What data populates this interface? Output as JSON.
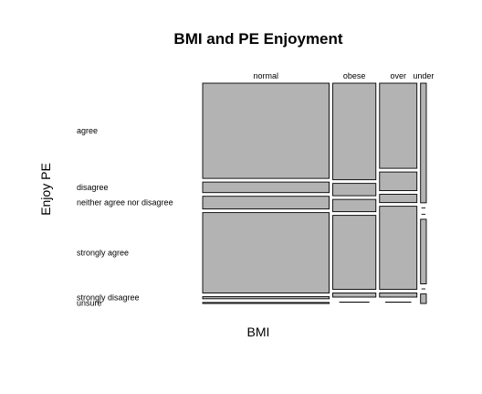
{
  "chart_data": {
    "type": "mosaic",
    "title": "BMI and PE Enjoyment",
    "xlabel": "BMI",
    "ylabel": "Enjoy PE",
    "columns": [
      "normal",
      "obese",
      "over",
      "under"
    ],
    "rows": [
      "agree",
      "disagree",
      "neither agree nor disagree",
      "strongly agree",
      "strongly disagree",
      "unsure"
    ],
    "column_shares": [
      0.44,
      0.15,
      0.13,
      0.02
    ],
    "row_proportions": {
      "normal": [
        0.45,
        0.05,
        0.06,
        0.38,
        0.01,
        0.005
      ],
      "obese": [
        0.47,
        0.06,
        0.06,
        0.36,
        0.02,
        0.0
      ],
      "over": [
        0.41,
        0.09,
        0.04,
        0.4,
        0.02,
        0.0
      ],
      "under": [
        0.5,
        0.0,
        0.0,
        0.27,
        0.0,
        0.04
      ]
    },
    "tile_color": "#b3b3b3"
  }
}
